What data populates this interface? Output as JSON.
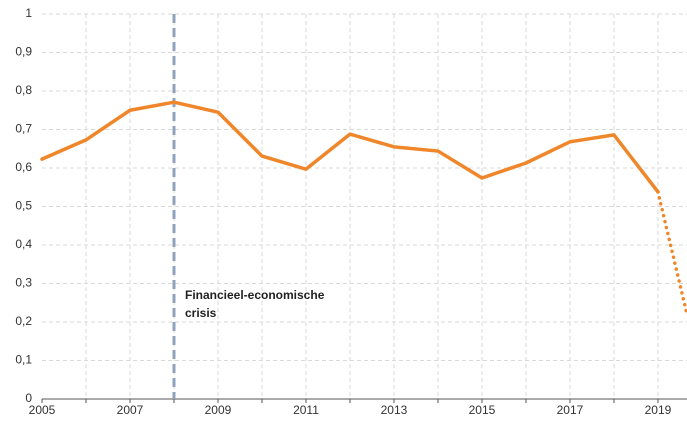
{
  "chart_data": {
    "type": "line",
    "series": [
      {
        "color": "#f0862a",
        "style": "solid",
        "x": [
          2005,
          2006,
          2007,
          2008,
          2009,
          2010,
          2011,
          2012,
          2013,
          2014,
          2015,
          2016,
          2017,
          2018,
          2019
        ],
        "values": [
          0.623,
          0.673,
          0.75,
          0.771,
          0.745,
          0.631,
          0.597,
          0.688,
          0.655,
          0.644,
          0.574,
          0.613,
          0.668,
          0.686,
          0.538
        ]
      },
      {
        "color": "#f0862a",
        "style": "dotted",
        "x": [
          2019,
          2019.66
        ],
        "values": [
          0.538,
          0.22
        ]
      }
    ],
    "xlim": [
      2005,
      2019.66
    ],
    "xticks": [
      2005,
      2007,
      2009,
      2011,
      2013,
      2015,
      2017,
      2019
    ],
    "minor_xticks": [
      2006,
      2008,
      2010,
      2012,
      2014,
      2016,
      2018
    ],
    "ylim": [
      0,
      1
    ],
    "yticks": [
      0,
      {
        "value": 0.1,
        "label": "0,1"
      },
      {
        "value": 0.2,
        "label": "0,2"
      },
      {
        "value": 0.3,
        "label": "0,3"
      },
      {
        "value": 0.4,
        "label": "0,4"
      },
      {
        "value": 0.5,
        "label": "0,5"
      },
      {
        "value": 0.6,
        "label": "0,6"
      },
      {
        "value": 0.7,
        "label": "0,7"
      },
      {
        "value": 0.8,
        "label": "0,8"
      },
      {
        "value": 0.9,
        "label": "0,9"
      },
      1
    ],
    "grid": true,
    "annotation": {
      "x": 2008,
      "color": "#8fa3bd",
      "lines": [
        "Financieel-economische",
        "crisis"
      ]
    }
  }
}
